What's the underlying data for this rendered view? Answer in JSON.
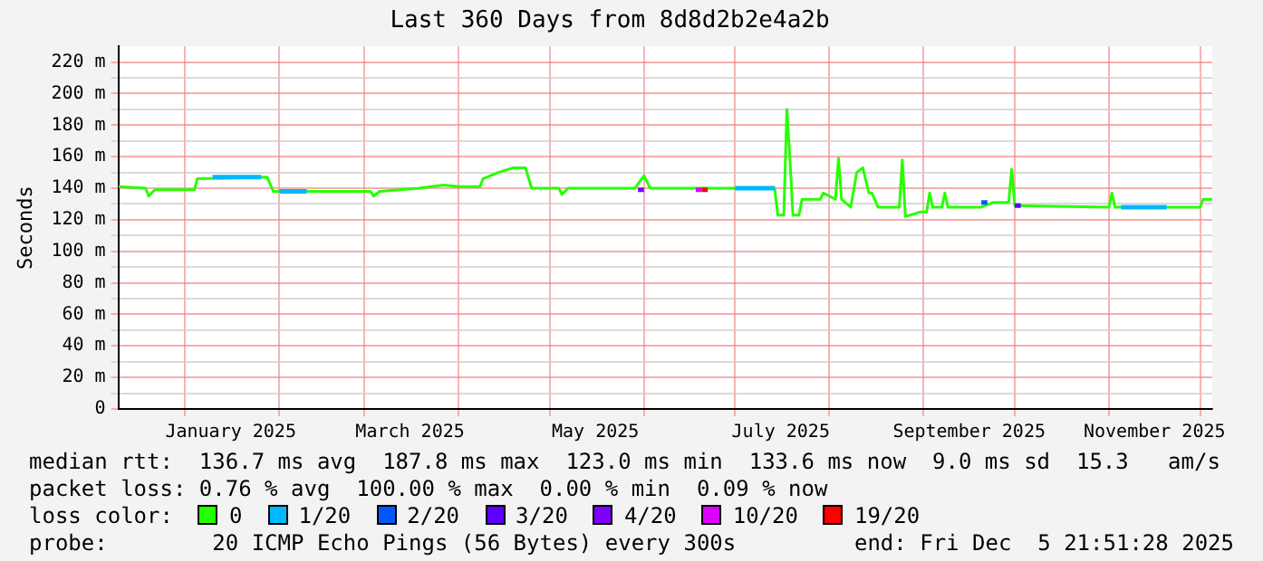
{
  "chart_data": {
    "type": "line",
    "title": "Last 360 Days from 8d8d2b2e4a2b",
    "ylabel": "Seconds",
    "legend_title": "loss color:",
    "legend": "bottom",
    "grid": true,
    "marker": "none",
    "line_style": "solid",
    "xlim": [
      "2024-12-10",
      "2025-12-05"
    ],
    "xticks": [
      {
        "value": "2025-01-01",
        "label": null
      },
      {
        "value": "2025-01-16",
        "label": "January 2025"
      },
      {
        "value": "2025-02-01",
        "label": null
      },
      {
        "value": "2025-03-01",
        "label": null
      },
      {
        "value": "2025-03-16",
        "label": "March 2025"
      },
      {
        "value": "2025-04-01",
        "label": null
      },
      {
        "value": "2025-05-01",
        "label": null
      },
      {
        "value": "2025-05-16",
        "label": "May 2025"
      },
      {
        "value": "2025-06-01",
        "label": null
      },
      {
        "value": "2025-07-01",
        "label": null
      },
      {
        "value": "2025-07-16",
        "label": "July 2025"
      },
      {
        "value": "2025-08-01",
        "label": null
      },
      {
        "value": "2025-09-01",
        "label": null
      },
      {
        "value": "2025-09-16",
        "label": "September 2025"
      },
      {
        "value": "2025-10-01",
        "label": null
      },
      {
        "value": "2025-11-01",
        "label": null
      },
      {
        "value": "2025-11-16",
        "label": "November 2025"
      },
      {
        "value": "2025-12-01",
        "label": null
      }
    ],
    "ylim": [
      0,
      230
    ],
    "yticks": [
      0,
      {
        "value": 10,
        "label": null
      },
      {
        "value": 20,
        "label": "20 m"
      },
      {
        "value": 30,
        "label": null
      },
      {
        "value": 40,
        "label": "40 m"
      },
      {
        "value": 50,
        "label": null
      },
      {
        "value": 60,
        "label": "60 m"
      },
      {
        "value": 70,
        "label": null
      },
      {
        "value": 80,
        "label": "80 m"
      },
      {
        "value": 90,
        "label": null
      },
      {
        "value": 100,
        "label": "100 m"
      },
      {
        "value": 110,
        "label": null
      },
      {
        "value": 120,
        "label": "120 m"
      },
      {
        "value": 130,
        "label": null
      },
      {
        "value": 140,
        "label": "140 m"
      },
      {
        "value": 150,
        "label": null
      },
      {
        "value": 160,
        "label": "160 m"
      },
      {
        "value": 170,
        "label": null
      },
      {
        "value": 180,
        "label": "180 m"
      },
      {
        "value": 190,
        "label": null
      },
      {
        "value": 200,
        "label": "200 m"
      },
      {
        "value": 210,
        "label": null
      },
      {
        "value": 220,
        "label": "220 m"
      }
    ],
    "series": [
      {
        "name": "0",
        "color": "#26ff00",
        "x": [
          "2024-12-10",
          "2024-12-19",
          "2024-12-20",
          "2024-12-22",
          "2025-01-04",
          "2025-01-05",
          "2025-01-28",
          "2025-01-30",
          "2025-03-03",
          "2025-03-04",
          "2025-03-06",
          "2025-03-19",
          "2025-03-27",
          "2025-04-01",
          "2025-04-08",
          "2025-04-09",
          "2025-04-14",
          "2025-04-19",
          "2025-04-23",
          "2025-04-25",
          "2025-05-04",
          "2025-05-05",
          "2025-05-07",
          "2025-05-29",
          "2025-06-01",
          "2025-06-03",
          "2025-07-14",
          "2025-07-15",
          "2025-07-17",
          "2025-07-18",
          "2025-07-19",
          "2025-07-20",
          "2025-07-22",
          "2025-07-23",
          "2025-07-29",
          "2025-07-30",
          "2025-08-03",
          "2025-08-04",
          "2025-08-05",
          "2025-08-08",
          "2025-08-10",
          "2025-08-12",
          "2025-08-14",
          "2025-08-15",
          "2025-08-17",
          "2025-08-24",
          "2025-08-25",
          "2025-08-26",
          "2025-08-31",
          "2025-09-02",
          "2025-09-03",
          "2025-09-04",
          "2025-09-07",
          "2025-09-08",
          "2025-09-09",
          "2025-09-20",
          "2025-09-24",
          "2025-09-29",
          "2025-09-30",
          "2025-10-01",
          "2025-11-01",
          "2025-11-02",
          "2025-11-03",
          "2025-12-01",
          "2025-12-02",
          "2025-12-05"
        ],
        "values": [
          141,
          140,
          135,
          139,
          139,
          146,
          147,
          138,
          138,
          135,
          138,
          140,
          142,
          141,
          141,
          146,
          150,
          153,
          153,
          140,
          140,
          136,
          140,
          140,
          148,
          140,
          140,
          123,
          123,
          190,
          159,
          123,
          123,
          133,
          133,
          137,
          133,
          159,
          133,
          128,
          150,
          153,
          137,
          137,
          128,
          128,
          158,
          122,
          125,
          125,
          137,
          128,
          128,
          137,
          128,
          128,
          131,
          131,
          152,
          129,
          128,
          137,
          128,
          128,
          133,
          133
        ]
      },
      {
        "name": "1/20",
        "color": "#00b8ff",
        "x": [
          "2025-01-10",
          "2025-01-26",
          null,
          "2025-02-01",
          "2025-02-10",
          null,
          "2025-07-01",
          "2025-07-14",
          null,
          "2025-11-05",
          "2025-11-20"
        ],
        "values": [
          147,
          147,
          null,
          138,
          138,
          null,
          140,
          140,
          null,
          128,
          128
        ]
      },
      {
        "name": "2/20",
        "color": "#0059ff",
        "x": [
          "2025-09-20",
          "2025-09-22"
        ],
        "values": [
          131,
          131
        ]
      },
      {
        "name": "3/20",
        "color": "#5e00ff",
        "x": [
          "2025-10-01",
          "2025-10-03"
        ],
        "values": [
          129,
          129
        ]
      },
      {
        "name": "4/20",
        "color": "#7e00ff",
        "x": [
          "2025-05-30",
          "2025-06-01"
        ],
        "values": [
          139,
          139
        ]
      },
      {
        "name": "10/20",
        "color": "#dd00ff",
        "x": [
          "2025-06-18",
          "2025-06-20"
        ],
        "values": [
          139,
          139
        ]
      },
      {
        "name": "19/20",
        "color": "#ff0000",
        "x": [
          "2025-06-20",
          "2025-06-22"
        ],
        "values": [
          139,
          139
        ]
      }
    ],
    "annotations": [
      "median rtt:  136.7 ms avg  187.8 ms max  123.0 ms min  133.6 ms now  9.0 ms sd  15.3   am/s",
      "packet loss: 0.76 % avg  100.00 % max  0.00 % min  0.09 % now",
      "probe:        20 ICMP Echo Pings (56 Bytes) every 300s",
      "end: Fri Dec  5 21:51:28 2025"
    ]
  }
}
